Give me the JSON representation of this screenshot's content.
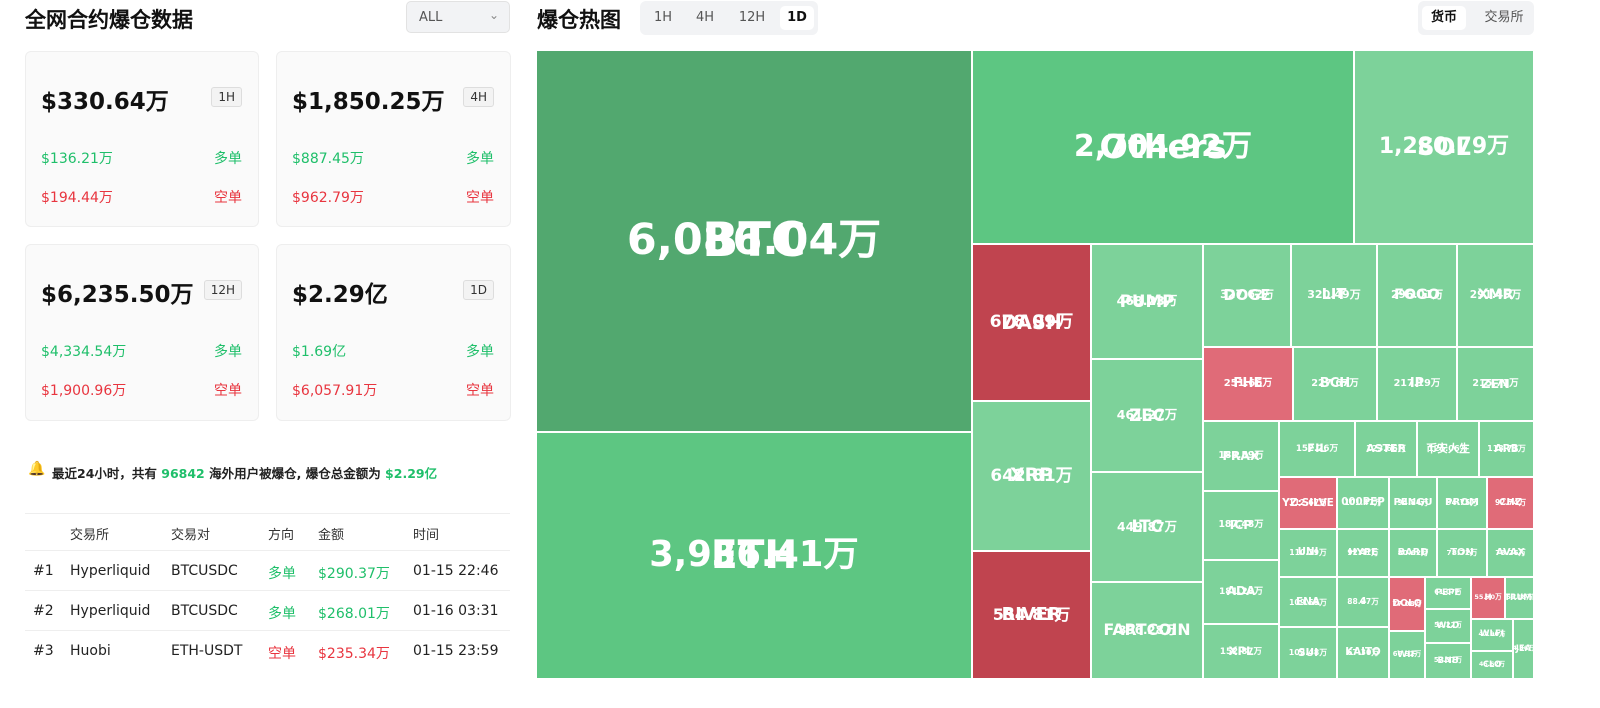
{
  "left": {
    "title": "全网合约爆仓数据",
    "filter": "ALL",
    "cards": [
      {
        "total": "$330.64万",
        "period": "1H",
        "long_amount": "$136.21万",
        "long_label": "多单",
        "short_amount": "$194.44万",
        "short_label": "空单"
      },
      {
        "total": "$1,850.25万",
        "period": "4H",
        "long_amount": "$887.45万",
        "long_label": "多单",
        "short_amount": "$962.79万",
        "short_label": "空单"
      },
      {
        "total": "$6,235.50万",
        "period": "12H",
        "long_amount": "$4,334.54万",
        "long_label": "多单",
        "short_amount": "$1,900.96万",
        "short_label": "空单"
      },
      {
        "total": "$2.29亿",
        "period": "1D",
        "long_amount": "$1.69亿",
        "long_label": "多单",
        "short_amount": "$6,057.91万",
        "short_label": "空单"
      }
    ],
    "notice": {
      "prefix": "最近24小时，共有",
      "count": "96842",
      "middle": "海外用户被爆仓, 爆仓总金额为",
      "amount": "$2.29亿"
    },
    "table": {
      "headers": [
        "交易所",
        "交易对",
        "方向",
        "金额",
        "时间"
      ],
      "rows": [
        [
          "#1",
          "Hyperliquid",
          "BTCUSDC",
          "多单",
          "$290.37万",
          "01-15 22:46"
        ],
        [
          "#2",
          "Hyperliquid",
          "BTCUSDC",
          "多单",
          "$268.01万",
          "01-16 03:31"
        ],
        [
          "#3",
          "Huobi",
          "ETH-USDT",
          "空单",
          "$235.34万",
          "01-15 23:59"
        ]
      ]
    }
  },
  "heatmap": {
    "title": "爆仓热图",
    "periods": [
      "1H",
      "4H",
      "12H",
      "1D"
    ],
    "active_period": "1D",
    "views": [
      "货币",
      "交易所"
    ],
    "active_view": "货币",
    "tiles": [
      {
        "name": "BTC",
        "value": "6,086.04万"
      },
      {
        "name": "ETH",
        "value": "3,936.41万"
      },
      {
        "name": "Others",
        "value": "2,704.92万"
      },
      {
        "name": "SOL",
        "value": "1,280.79万"
      },
      {
        "name": "DASH",
        "value": "678.09万"
      },
      {
        "name": "XRP",
        "value": "642.81万"
      },
      {
        "name": "RIVER",
        "value": "554.81万"
      },
      {
        "name": "PUMP",
        "value": "468.23万"
      },
      {
        "name": "ZEC",
        "value": "461.27万"
      },
      {
        "name": "LTC",
        "value": "449.87万"
      },
      {
        "name": "FARTCOIN",
        "value": "396.28万"
      },
      {
        "name": "DOGE",
        "value": "327.62万"
      },
      {
        "name": "LIT",
        "value": "320.49万"
      },
      {
        "name": "FOGO",
        "value": "296.01万"
      },
      {
        "name": "XMR",
        "value": "291.45万"
      },
      {
        "name": "FHE",
        "value": "251.66万"
      },
      {
        "name": "BCH",
        "value": "227.67万"
      },
      {
        "name": "IP",
        "value": "217.19万"
      },
      {
        "name": "ZEN",
        "value": "215.71万"
      },
      {
        "name": "FRAX",
        "value": "188.59万"
      },
      {
        "name": "FIL",
        "value": "152.26万"
      },
      {
        "name": "ASTER",
        "value": "123.66万"
      },
      {
        "name": "币安人生",
        "value": "121.06万"
      },
      {
        "name": "ARB",
        "value": "113.71万"
      },
      {
        "name": "ICP",
        "value": "187.48万"
      },
      {
        "name": "YZ:SILVE",
        "value": "112.67万"
      },
      {
        "name": "000PEP",
        "value": "101.47万"
      },
      {
        "name": "PENGU",
        "value": "94.84万"
      },
      {
        "name": "PROM",
        "value": "94.75万"
      },
      {
        "name": "CHZ",
        "value": "92.74万"
      },
      {
        "name": "UNI",
        "value": "110.29万"
      },
      {
        "name": "HYPE",
        "value": "92.41万"
      },
      {
        "name": "BARD",
        "value": "80.62万"
      },
      {
        "name": "TON",
        "value": "78.72万"
      },
      {
        "name": "AVAX",
        "value": "78.26万"
      },
      {
        "name": "ADA",
        "value": "181.28万"
      },
      {
        "name": "XPL",
        "value": "152.87万"
      },
      {
        "name": "ENA",
        "value": "109.55万"
      },
      {
        "name": "SUI",
        "value": "102.48万"
      },
      {
        "name": "4",
        "value": "88.97万"
      },
      {
        "name": "DOLO",
        "value": "77.08万"
      },
      {
        "name": "PEPE",
        "value": "61.07万"
      },
      {
        "name": "H",
        "value": "55.70万"
      },
      {
        "name": "TRUMI",
        "value": "50.18万"
      },
      {
        "name": "WLD",
        "value": "58.22万"
      },
      {
        "name": "KAITO",
        "value": "67.30万"
      },
      {
        "name": "WIF",
        "value": "66.92万"
      },
      {
        "name": "WLFI",
        "value": "47.90万"
      },
      {
        "name": "BNB",
        "value": "57.37万"
      },
      {
        "name": "CLO",
        "value": "46.62万"
      },
      {
        "name": "JEA",
        "value": "4.36万"
      }
    ]
  }
}
